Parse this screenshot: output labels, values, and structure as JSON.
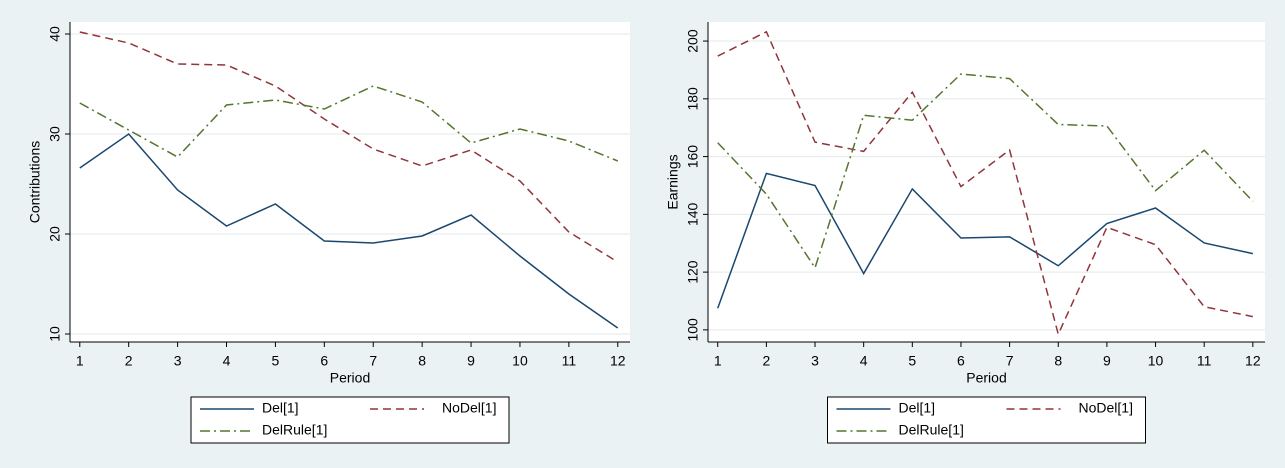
{
  "chart_data": [
    {
      "type": "line",
      "ylabel": "Contributions",
      "xlabel": "Period",
      "x": [
        1,
        2,
        3,
        4,
        5,
        6,
        7,
        8,
        9,
        10,
        11,
        12
      ],
      "xlim": [
        0.8,
        12.25
      ],
      "ylim": [
        9.2,
        41.2
      ],
      "xticks": [
        1,
        2,
        3,
        4,
        5,
        6,
        7,
        8,
        9,
        10,
        11,
        12
      ],
      "yticks": [
        10,
        20,
        30,
        40
      ],
      "grid": true,
      "legend": "bottom",
      "series": [
        {
          "name": "Del[1]",
          "color": "#1a476f",
          "dash": "solid",
          "values": [
            26.6,
            30.0,
            24.4,
            20.8,
            23.0,
            19.3,
            19.1,
            19.8,
            21.9,
            17.8,
            14.0,
            10.6
          ]
        },
        {
          "name": "NoDel[1]",
          "color": "#90353b",
          "dash": "dash",
          "values": [
            40.2,
            39.1,
            37.0,
            36.9,
            34.8,
            31.5,
            28.5,
            26.8,
            28.4,
            25.3,
            20.2,
            17.2
          ]
        },
        {
          "name": "DelRule[1]",
          "color": "#55752f",
          "dash": "dashdot",
          "values": [
            33.1,
            30.4,
            27.7,
            32.9,
            33.4,
            32.5,
            34.8,
            33.2,
            29.1,
            30.5,
            29.3,
            27.3
          ]
        }
      ]
    },
    {
      "type": "line",
      "ylabel": "Earnings",
      "xlabel": "Period",
      "x": [
        1,
        2,
        3,
        4,
        5,
        6,
        7,
        8,
        9,
        10,
        11,
        12
      ],
      "xlim": [
        0.8,
        12.25
      ],
      "ylim": [
        95.8,
        206.6
      ],
      "xticks": [
        1,
        2,
        3,
        4,
        5,
        6,
        7,
        8,
        9,
        10,
        11,
        12
      ],
      "yticks": [
        100,
        120,
        140,
        160,
        180,
        200
      ],
      "grid": true,
      "legend": "bottom",
      "series": [
        {
          "name": "Del[1]",
          "color": "#1a476f",
          "dash": "solid",
          "values": [
            107.5,
            154.2,
            150,
            119.5,
            148.8,
            131.8,
            132.2,
            122.2,
            136.8,
            142.2,
            130.1,
            126.4
          ]
        },
        {
          "name": "NoDel[1]",
          "color": "#90353b",
          "dash": "dash",
          "values": [
            194.8,
            203.2,
            165,
            161.8,
            182.3,
            149.6,
            162.3,
            98.5,
            135.5,
            129.5,
            108,
            104.6
          ]
        },
        {
          "name": "DelRule[1]",
          "color": "#55752f",
          "dash": "dashdot",
          "values": [
            164.8,
            147,
            121.5,
            174.3,
            172.6,
            188.6,
            187,
            171.1,
            170.6,
            148.2,
            162.2,
            144.5
          ]
        }
      ]
    }
  ]
}
